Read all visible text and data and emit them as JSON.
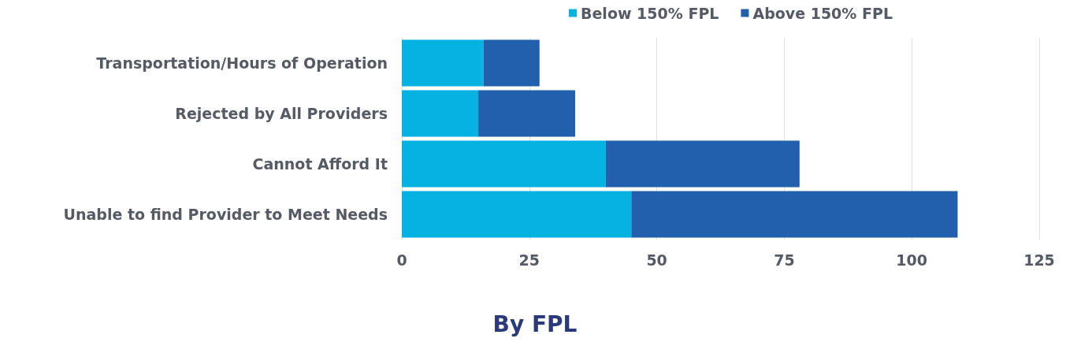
{
  "chart_data": {
    "type": "bar",
    "orientation": "horizontal",
    "stacked": true,
    "title": "By FPL",
    "categories": [
      "Transportation/Hours of Operation",
      "Rejected by All Providers",
      "Cannot Afford It",
      "Unable to find Provider to Meet Needs"
    ],
    "series": [
      {
        "name": "Below 150% FPL",
        "color": "#05b2e1",
        "values": [
          16,
          15,
          40,
          45
        ]
      },
      {
        "name": "Above 150% FPL",
        "color": "#2260ad",
        "values": [
          11,
          19,
          38,
          64
        ]
      }
    ],
    "xlim": [
      0,
      125
    ],
    "xticks": [
      0,
      25,
      50,
      75,
      100,
      125
    ],
    "grid": "x",
    "legend": "top right"
  }
}
